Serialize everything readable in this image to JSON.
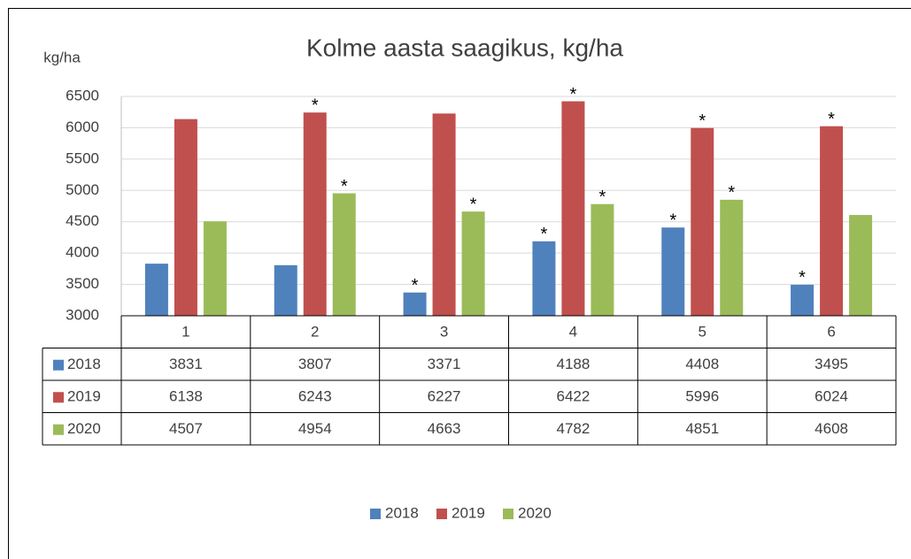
{
  "chart_data": {
    "type": "bar",
    "title": "Kolme aasta saagikus, kg/ha",
    "y_label": "kg/ha",
    "categories": [
      "1",
      "2",
      "3",
      "4",
      "5",
      "6"
    ],
    "series": [
      {
        "name": "2018",
        "color": "#4f81bd",
        "values": [
          3831,
          3807,
          3371,
          4188,
          4408,
          3495
        ],
        "annotations": [
          null,
          null,
          "*",
          "*",
          "*",
          "*"
        ]
      },
      {
        "name": "2019",
        "color": "#c0504d",
        "values": [
          6138,
          6243,
          6227,
          6422,
          5996,
          6024
        ],
        "annotations": [
          null,
          "*",
          null,
          "*",
          "*",
          "*"
        ]
      },
      {
        "name": "2020",
        "color": "#9bbb59",
        "values": [
          4507,
          4954,
          4663,
          4782,
          4851,
          4608
        ],
        "annotations": [
          null,
          "*",
          "*",
          "*",
          "*",
          null
        ]
      }
    ],
    "ylim": [
      3000,
      6500
    ],
    "yticks": [
      3000,
      3500,
      4000,
      4500,
      5000,
      5500,
      6000,
      6500
    ],
    "grid": true,
    "data_table": true,
    "legend": "bottom"
  }
}
